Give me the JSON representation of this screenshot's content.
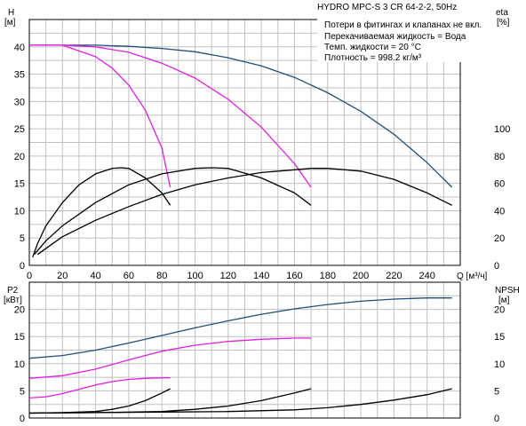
{
  "colors": {
    "grid": "#c0c0c0",
    "head": "#1f4e79",
    "magenta": "#e020e0",
    "black": "#000000"
  },
  "legend": {
    "title": "HYDRO MPC-S 3 CR 64-2-2, 50Hz",
    "lines": [
      "Потери в фитингах и клапанах не вкл.",
      "Перекачиваемая жидкость = Вода",
      "Темп. жидкости = 20 °C",
      "Плотность = 998.2 кг/м³"
    ]
  },
  "chart_data": [
    {
      "type": "line",
      "panel": "top",
      "xlabel": "Q [м³/ч]",
      "ylabel": "H",
      "ylabel_unit": "[м]",
      "y2label": "eta",
      "y2label_unit": "[%]",
      "xlim": [
        0,
        260
      ],
      "ylim": [
        0,
        45
      ],
      "y2lim": [
        0,
        180
      ],
      "x_ticks": [
        0,
        20,
        40,
        60,
        80,
        100,
        120,
        140,
        160,
        180,
        200,
        220,
        240
      ],
      "y_ticks": [
        0,
        5,
        10,
        15,
        20,
        25,
        30,
        35,
        40
      ],
      "y2_ticks": [
        0,
        20,
        40,
        60,
        80,
        100
      ],
      "grid": true,
      "series": [
        {
          "kind": "head",
          "pumps": 3,
          "color": "head",
          "axis": "y",
          "x": [
            0,
            20,
            40,
            60,
            80,
            100,
            120,
            140,
            160,
            180,
            200,
            220,
            240,
            255
          ],
          "y": [
            40.3,
            40.3,
            40.3,
            40.1,
            39.7,
            39.1,
            38.0,
            36.5,
            34.4,
            31.6,
            28.2,
            24.0,
            18.8,
            14.3
          ]
        },
        {
          "kind": "head",
          "pumps": 2,
          "color": "magenta",
          "axis": "y",
          "x": [
            0,
            20,
            40,
            60,
            80,
            100,
            120,
            140,
            160,
            170
          ],
          "y": [
            40.3,
            40.3,
            40.0,
            39.0,
            37.0,
            34.3,
            30.4,
            25.3,
            18.6,
            14.3
          ]
        },
        {
          "kind": "head",
          "pumps": 1,
          "color": "magenta",
          "axis": "y",
          "x": [
            0,
            20,
            40,
            50,
            60,
            70,
            80,
            85
          ],
          "y": [
            40.3,
            40.3,
            38.2,
            36.1,
            33.0,
            28.4,
            21.5,
            14.3
          ]
        },
        {
          "kind": "eta",
          "pumps": 3,
          "color": "black",
          "axis": "y2",
          "x": [
            5,
            20,
            40,
            60,
            80,
            100,
            120,
            140,
            160,
            170,
            180,
            200,
            220,
            240,
            255
          ],
          "y": [
            8,
            21,
            33,
            43,
            52,
            59,
            64,
            68,
            70,
            71,
            71,
            69,
            63,
            53,
            44
          ]
        },
        {
          "kind": "eta",
          "pumps": 2,
          "color": "black",
          "axis": "y2",
          "x": [
            3,
            10,
            20,
            40,
            60,
            80,
            100,
            110,
            120,
            140,
            160,
            170
          ],
          "y": [
            8,
            18,
            29,
            46,
            59,
            67,
            71,
            71.5,
            71,
            64,
            53,
            44
          ]
        },
        {
          "kind": "eta",
          "pumps": 1,
          "color": "black",
          "axis": "y2",
          "x": [
            2,
            5,
            10,
            20,
            30,
            40,
            50,
            55,
            60,
            70,
            80,
            85
          ],
          "y": [
            6,
            16,
            29,
            46,
            59,
            67,
            71,
            71.5,
            71,
            64,
            53,
            44
          ]
        }
      ]
    },
    {
      "type": "line",
      "panel": "bottom",
      "ylabel": "P2",
      "ylabel_unit": "[кВт]",
      "y2label": "NPSH",
      "y2label_unit": "[м]",
      "xlim": [
        0,
        260
      ],
      "ylim": [
        0,
        25
      ],
      "y2lim": [
        0,
        25
      ],
      "y_ticks": [
        0,
        5,
        10,
        15,
        20
      ],
      "y2_ticks": [
        0,
        5,
        10,
        15,
        20
      ],
      "grid": true,
      "series": [
        {
          "kind": "p2",
          "pumps": 3,
          "color": "head",
          "axis": "y",
          "x": [
            0,
            20,
            40,
            60,
            80,
            100,
            120,
            140,
            160,
            180,
            200,
            220,
            240,
            255
          ],
          "y": [
            11.0,
            11.5,
            12.5,
            13.8,
            15.2,
            16.6,
            17.9,
            19.1,
            20.1,
            20.9,
            21.5,
            21.9,
            22.1,
            22.1
          ]
        },
        {
          "kind": "p2",
          "pumps": 2,
          "color": "magenta",
          "axis": "y",
          "x": [
            0,
            20,
            40,
            60,
            80,
            100,
            120,
            140,
            160,
            170
          ],
          "y": [
            7.3,
            7.8,
            9.0,
            10.7,
            12.3,
            13.4,
            14.1,
            14.5,
            14.7,
            14.7
          ]
        },
        {
          "kind": "p2",
          "pumps": 1,
          "color": "magenta",
          "axis": "y",
          "x": [
            0,
            10,
            20,
            30,
            40,
            50,
            60,
            70,
            80,
            85
          ],
          "y": [
            3.7,
            3.9,
            4.5,
            5.3,
            6.1,
            6.7,
            7.1,
            7.3,
            7.4,
            7.4
          ]
        },
        {
          "kind": "npsh",
          "pumps": 3,
          "color": "black",
          "axis": "y2",
          "x": [
            0,
            40,
            80,
            120,
            160,
            180,
            200,
            220,
            240,
            255
          ],
          "y": [
            0.9,
            1.0,
            1.1,
            1.2,
            1.5,
            1.9,
            2.5,
            3.3,
            4.3,
            5.4
          ]
        },
        {
          "kind": "npsh",
          "pumps": 2,
          "color": "black",
          "axis": "y2",
          "x": [
            0,
            40,
            80,
            100,
            120,
            140,
            160,
            170
          ],
          "y": [
            0.9,
            1.0,
            1.2,
            1.6,
            2.2,
            3.2,
            4.6,
            5.4
          ]
        },
        {
          "kind": "npsh",
          "pumps": 1,
          "color": "black",
          "axis": "y2",
          "x": [
            0,
            20,
            40,
            50,
            60,
            70,
            80,
            85
          ],
          "y": [
            0.9,
            1.0,
            1.2,
            1.6,
            2.2,
            3.2,
            4.6,
            5.4
          ]
        }
      ]
    }
  ]
}
